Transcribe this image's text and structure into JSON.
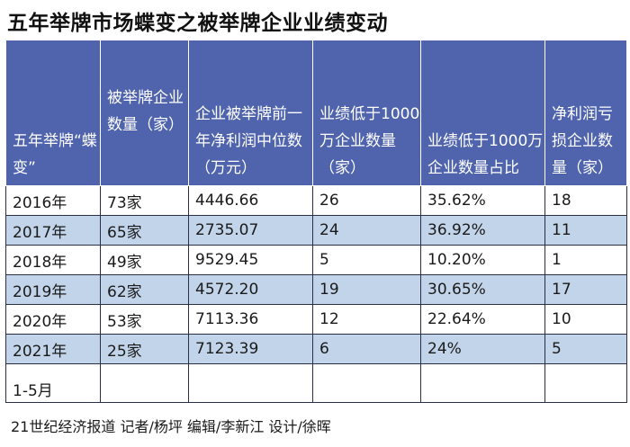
{
  "title": "五年举牌市场蝶变之被举牌企业业绩变动",
  "columns": [
    "五年举牌“蝶变”",
    "被举牌企业数量（家）",
    "企业被举牌前一年净利润中位数（万元）",
    "业绩低于1000万企业数量（家）",
    "业绩低于1000万企业数量占比",
    "净利润亏损企业数量（家）"
  ],
  "rows": [
    [
      "2016年",
      "73家",
      "4446.66",
      "26",
      "35.62%",
      "18"
    ],
    [
      "2017年",
      "65家",
      "2735.07",
      "24",
      "36.92%",
      "11"
    ],
    [
      "2018年",
      "49家",
      "9529.45",
      "5",
      "10.20%",
      "1"
    ],
    [
      "2019年",
      "62家",
      "4572.20",
      "19",
      "30.65%",
      "17"
    ],
    [
      "2020年",
      "53家",
      "7113.36",
      "12",
      "22.64%",
      "10"
    ],
    [
      "2021年",
      "25家",
      "7123.39",
      "6",
      "24%",
      "5"
    ]
  ],
  "last_row_label": "1-5月",
  "credit": "21世纪经济报道 记者/杨坪 编辑/李新江 设计/徐晖",
  "colors": {
    "header_bg": "#4f64ad",
    "stripe_bg": "#c2d4ea"
  }
}
